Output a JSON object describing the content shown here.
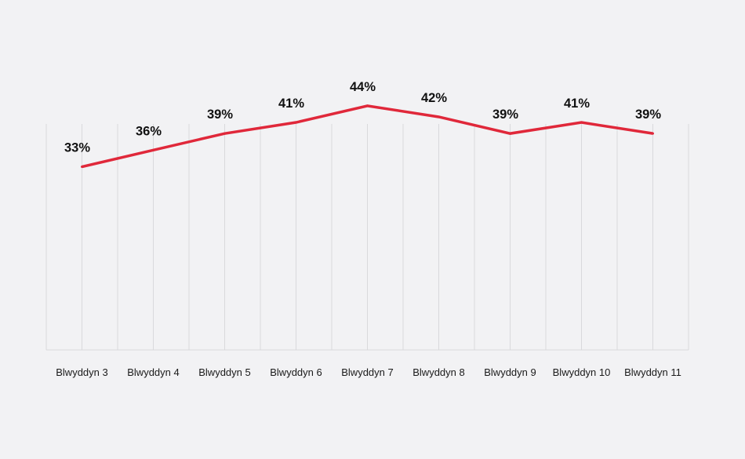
{
  "colors": {
    "background": "#f2f2f4",
    "grid": "#d9d9dc",
    "line": "#e0283a",
    "text": "#111111"
  },
  "chart_data": {
    "type": "line",
    "title": "",
    "xlabel": "",
    "ylabel": "",
    "categories": [
      "Blwyddyn 3",
      "Blwyddyn 4",
      "Blwyddyn 5",
      "Blwyddyn 6",
      "Blwyddyn 7",
      "Blwyddyn 8",
      "Blwyddyn 9",
      "Blwyddyn 10",
      "Blwyddyn 11"
    ],
    "series": [
      {
        "name": "",
        "values": [
          33,
          36,
          39,
          41,
          44,
          42,
          39,
          41,
          39
        ],
        "labels": [
          "33%",
          "36%",
          "39%",
          "41%",
          "44%",
          "42%",
          "39%",
          "41%",
          "39%"
        ]
      }
    ],
    "ylim": [
      0,
      50
    ],
    "grid": true,
    "legend": "none"
  }
}
